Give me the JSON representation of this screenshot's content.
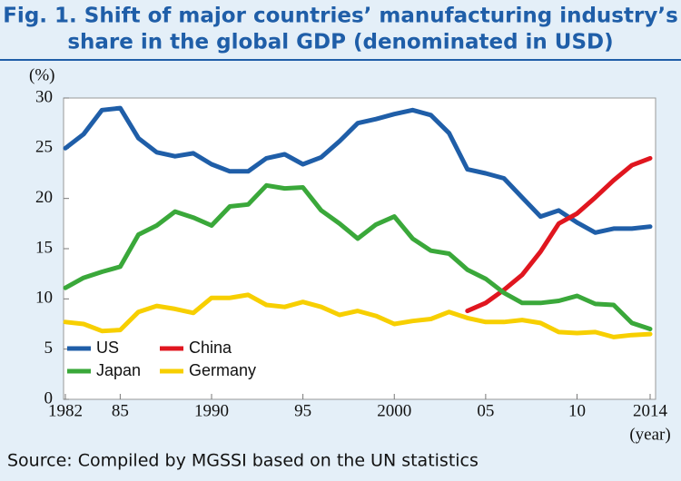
{
  "chart_data": {
    "type": "line",
    "title": [
      "Fig. 1. Shift of major countries’ manufacturing industry’s",
      "share in the global GDP (denominated in USD)"
    ],
    "ylabel": "(%)",
    "xlabel": "(year)",
    "source": "Source: Compiled by MGSSI based on the UN statistics",
    "x": [
      1982,
      1983,
      1984,
      1985,
      1986,
      1987,
      1988,
      1989,
      1990,
      1991,
      1992,
      1993,
      1994,
      1995,
      1996,
      1997,
      1998,
      1999,
      2000,
      2001,
      2002,
      2003,
      2004,
      2005,
      2006,
      2007,
      2008,
      2009,
      2010,
      2011,
      2012,
      2013,
      2014
    ],
    "xlim": [
      1982,
      2014
    ],
    "xticks": [
      1982,
      {
        "value": 1985,
        "label": "85"
      },
      1990,
      {
        "value": 1995,
        "label": "95"
      },
      2000,
      {
        "value": 2005,
        "label": "05"
      },
      {
        "value": 2010,
        "label": "10"
      },
      2014
    ],
    "ylim": [
      0,
      30
    ],
    "yticks": [
      0,
      5,
      10,
      15,
      20,
      25,
      30
    ],
    "grid": false,
    "legend": "lower left",
    "series": [
      {
        "name": "US",
        "color": "#1f5ea8",
        "values": [
          25,
          26.4,
          28.8,
          29,
          26,
          24.6,
          24.2,
          24.5,
          23.4,
          22.7,
          22.7,
          24,
          24.4,
          23.4,
          24.1,
          25.7,
          27.5,
          27.9,
          28.4,
          28.8,
          28.3,
          26.5,
          22.9,
          22.5,
          22,
          20.1,
          18.2,
          18.8,
          17.6,
          16.6,
          17,
          17,
          17.2
        ]
      },
      {
        "name": "China",
        "color": "#e0161f",
        "values": [
          null,
          null,
          null,
          null,
          null,
          null,
          null,
          null,
          null,
          null,
          null,
          null,
          null,
          null,
          null,
          null,
          null,
          null,
          null,
          null,
          null,
          null,
          8.8,
          9.6,
          10.9,
          12.4,
          14.7,
          17.5,
          18.5,
          20.1,
          21.8,
          23.3,
          24
        ]
      },
      {
        "name": "Japan",
        "color": "#3aa83a",
        "values": [
          11.1,
          12.1,
          12.7,
          13.2,
          16.4,
          17.3,
          18.7,
          18.1,
          17.3,
          19.2,
          19.4,
          21.3,
          21,
          21.1,
          18.8,
          17.5,
          16,
          17.4,
          18.2,
          16,
          14.8,
          14.5,
          12.9,
          12,
          10.6,
          9.6,
          9.6,
          9.8,
          10.3,
          9.5,
          9.4,
          7.6,
          7
        ]
      },
      {
        "name": "Germany",
        "color": "#f7cf00",
        "values": [
          7.7,
          7.5,
          6.8,
          6.9,
          8.7,
          9.3,
          9,
          8.6,
          10.1,
          10.1,
          10.4,
          9.4,
          9.2,
          9.7,
          9.2,
          8.4,
          8.8,
          8.3,
          7.5,
          7.8,
          8,
          8.7,
          8.1,
          7.7,
          7.7,
          7.9,
          7.6,
          6.7,
          6.6,
          6.7,
          6.2,
          6.4,
          6.5
        ]
      }
    ]
  }
}
